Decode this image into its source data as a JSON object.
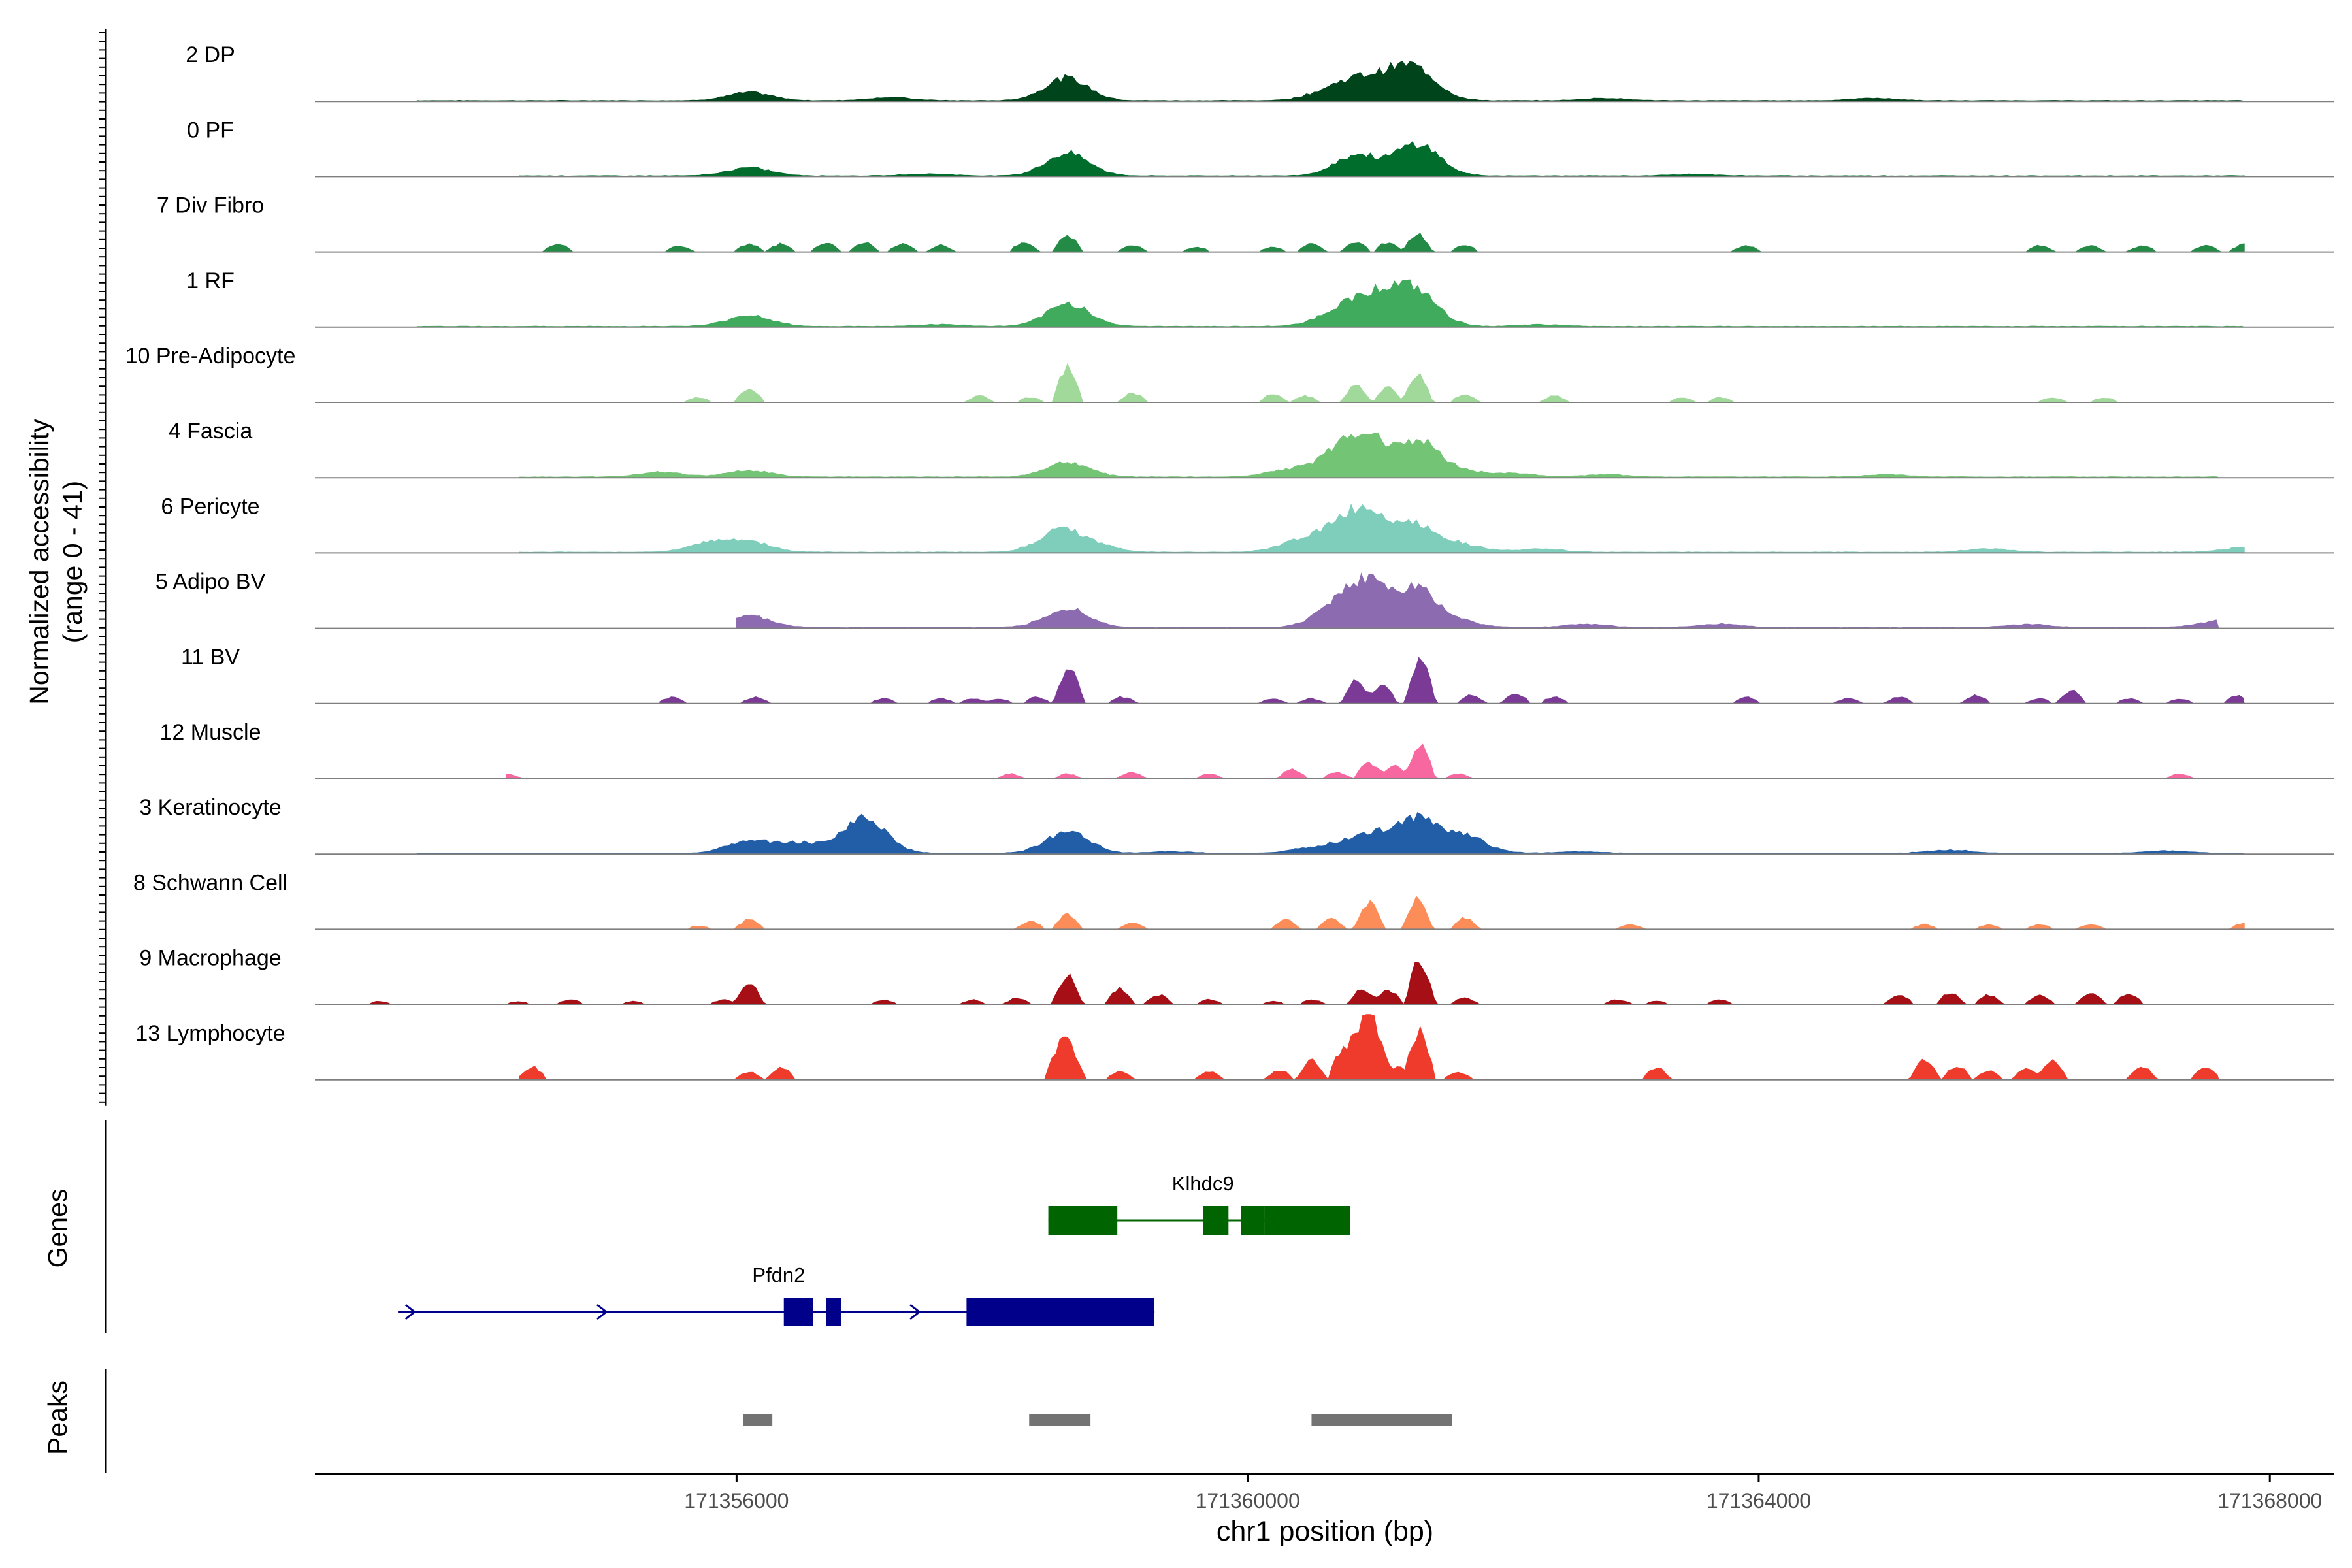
{
  "chart_data": {
    "type": "area",
    "title": "",
    "ylabel_line1": "Normalized accessibility",
    "ylabel_line2": "(range 0 - 41)",
    "xlabel": "chr1 position (bp)",
    "ylim": [
      0,
      41
    ],
    "xlim": [
      171352700,
      171368500
    ],
    "x_ticks": [
      171356000,
      171360000,
      171364000,
      171368000
    ],
    "x_tick_labels": [
      "171356000",
      "171360000",
      "171364000",
      "171368000"
    ],
    "tracks": [
      {
        "label": "2 DP",
        "color": "#00441b",
        "smooth": true,
        "coverage": [
          171353500,
          171367800
        ],
        "peaks": [
          [
            171356100,
            5
          ],
          [
            171358580,
            14
          ],
          [
            171360600,
            4
          ],
          [
            171360850,
            11
          ],
          [
            171361130,
            10
          ],
          [
            171361330,
            16
          ],
          [
            171357200,
            2
          ],
          [
            171362800,
            1.5
          ],
          [
            171364900,
            1.5
          ]
        ]
      },
      {
        "label": "0 PF",
        "color": "#006d2c",
        "smooth": true,
        "coverage": [
          171354300,
          171367800
        ],
        "peaks": [
          [
            171356100,
            5
          ],
          [
            171358590,
            14
          ],
          [
            171360850,
            13
          ],
          [
            171361330,
            20
          ],
          [
            171357500,
            1.2
          ],
          [
            171363500,
            1
          ]
        ]
      },
      {
        "label": "7 Div Fibro",
        "color": "#238b45",
        "smooth": false,
        "coverage": [
          171354300,
          171367800
        ],
        "peaks": [
          [
            171354600,
            5
          ],
          [
            171355550,
            4
          ],
          [
            171356100,
            5
          ],
          [
            171356350,
            5
          ],
          [
            171356700,
            6
          ],
          [
            171357000,
            6
          ],
          [
            171357300,
            5
          ],
          [
            171357600,
            4
          ],
          [
            171358250,
            6
          ],
          [
            171358590,
            10
          ],
          [
            171359100,
            4
          ],
          [
            171359600,
            3
          ],
          [
            171360200,
            3
          ],
          [
            171360500,
            5
          ],
          [
            171360850,
            6
          ],
          [
            171361100,
            6
          ],
          [
            171361330,
            11
          ],
          [
            171361700,
            4
          ],
          [
            171363900,
            4
          ],
          [
            171366200,
            4
          ],
          [
            171366600,
            4
          ],
          [
            171367000,
            4
          ],
          [
            171367500,
            4
          ],
          [
            171367800,
            5
          ]
        ]
      },
      {
        "label": "1 RF",
        "color": "#41ab5d",
        "smooth": true,
        "coverage": [
          171353500,
          171367800
        ],
        "peaks": [
          [
            171356100,
            7
          ],
          [
            171358600,
            14
          ],
          [
            171360700,
            8
          ],
          [
            171360950,
            13
          ],
          [
            171361130,
            9
          ],
          [
            171361330,
            18
          ],
          [
            171357600,
            1.2
          ],
          [
            171362300,
            1
          ]
        ]
      },
      {
        "label": "10 Pre-Adipocyte",
        "color": "#a1d99b",
        "smooth": false,
        "coverage": [
          171355500,
          171367300
        ],
        "peaks": [
          [
            171355700,
            3
          ],
          [
            171356100,
            9
          ],
          [
            171357900,
            4
          ],
          [
            171358300,
            3
          ],
          [
            171358590,
            22
          ],
          [
            171359100,
            6
          ],
          [
            171360200,
            5
          ],
          [
            171360450,
            4
          ],
          [
            171360850,
            11
          ],
          [
            171361100,
            9
          ],
          [
            171361330,
            17
          ],
          [
            171361700,
            5
          ],
          [
            171362400,
            4
          ],
          [
            171363400,
            3
          ],
          [
            171363700,
            3
          ],
          [
            171366300,
            3
          ],
          [
            171366700,
            3
          ]
        ]
      },
      {
        "label": "4 Fascia",
        "color": "#74c476",
        "smooth": true,
        "coverage": [
          171354300,
          171367600
        ],
        "peaks": [
          [
            171355400,
            3
          ],
          [
            171356100,
            4
          ],
          [
            171358590,
            9
          ],
          [
            171360300,
            4
          ],
          [
            171360650,
            8
          ],
          [
            171360900,
            25
          ],
          [
            171361330,
            22
          ],
          [
            171361700,
            3
          ],
          [
            171362100,
            2
          ],
          [
            171362800,
            1.5
          ],
          [
            171365000,
            1.5
          ]
        ]
      },
      {
        "label": "6 Pericyte",
        "color": "#7fcdbb",
        "smooth": true,
        "coverage": [
          171354300,
          171367800
        ],
        "peaks": [
          [
            171355800,
            6
          ],
          [
            171356100,
            6
          ],
          [
            171358530,
            13
          ],
          [
            171358800,
            4
          ],
          [
            171360400,
            6
          ],
          [
            171360700,
            12
          ],
          [
            171360950,
            22
          ],
          [
            171361330,
            16
          ],
          [
            171361700,
            4
          ],
          [
            171362300,
            2
          ],
          [
            171365800,
            2
          ],
          [
            171367800,
            3
          ]
        ]
      },
      {
        "label": "5 Adipo BV",
        "color": "#8c6bb1",
        "smooth": true,
        "coverage": [
          171356000,
          171367600
        ],
        "peaks": [
          [
            171356100,
            7
          ],
          [
            171358590,
            12
          ],
          [
            171360700,
            12
          ],
          [
            171360950,
            24
          ],
          [
            171361330,
            22
          ],
          [
            171361650,
            3
          ],
          [
            171362650,
            2
          ],
          [
            171363700,
            2
          ],
          [
            171366100,
            2
          ],
          [
            171367600,
            4
          ]
        ]
      },
      {
        "label": "11 BV",
        "color": "#7a3a96",
        "smooth": false,
        "coverage": [
          171355400,
          171367800
        ],
        "peaks": [
          [
            171355500,
            4
          ],
          [
            171356150,
            4
          ],
          [
            171357150,
            3
          ],
          [
            171357600,
            3
          ],
          [
            171357850,
            3
          ],
          [
            171358050,
            3
          ],
          [
            171358350,
            4
          ],
          [
            171358600,
            22
          ],
          [
            171359020,
            4
          ],
          [
            171360200,
            3
          ],
          [
            171360500,
            3
          ],
          [
            171360850,
            14
          ],
          [
            171361050,
            12
          ],
          [
            171361350,
            28
          ],
          [
            171361750,
            5
          ],
          [
            171362100,
            6
          ],
          [
            171362400,
            4
          ],
          [
            171363900,
            4
          ],
          [
            171364700,
            3
          ],
          [
            171365100,
            4
          ],
          [
            171365700,
            5
          ],
          [
            171366200,
            3
          ],
          [
            171366450,
            8
          ],
          [
            171366900,
            3
          ],
          [
            171367300,
            3
          ],
          [
            171367750,
            5
          ]
        ]
      },
      {
        "label": "12 Muscle",
        "color": "#f768a1",
        "smooth": false,
        "coverage": [
          171354200,
          171367400
        ],
        "peaks": [
          [
            171354200,
            3
          ],
          [
            171358150,
            3
          ],
          [
            171358590,
            3
          ],
          [
            171359090,
            4
          ],
          [
            171359700,
            3
          ],
          [
            171360350,
            6
          ],
          [
            171360700,
            4
          ],
          [
            171360950,
            10
          ],
          [
            171361150,
            8
          ],
          [
            171361350,
            20
          ],
          [
            171361650,
            3
          ],
          [
            171367300,
            3
          ]
        ]
      },
      {
        "label": "3 Keratinocyte",
        "color": "#225ea8",
        "smooth": true,
        "coverage": [
          171353500,
          171367800
        ],
        "peaks": [
          [
            171356100,
            8
          ],
          [
            171356500,
            6
          ],
          [
            171357000,
            22
          ],
          [
            171358590,
            13
          ],
          [
            171360500,
            3
          ],
          [
            171360850,
            8
          ],
          [
            171361100,
            6
          ],
          [
            171361330,
            19
          ],
          [
            171361700,
            10
          ],
          [
            171359400,
            1
          ],
          [
            171362600,
            1
          ],
          [
            171365500,
            2
          ],
          [
            171367200,
            1.5
          ]
        ]
      },
      {
        "label": "8 Schwann Cell",
        "color": "#fc8d59",
        "smooth": false,
        "coverage": [
          171355500,
          171367800
        ],
        "peaks": [
          [
            171355700,
            2
          ],
          [
            171356100,
            6
          ],
          [
            171358300,
            5
          ],
          [
            171358590,
            9
          ],
          [
            171359100,
            4
          ],
          [
            171360300,
            6
          ],
          [
            171360650,
            7
          ],
          [
            171360950,
            17
          ],
          [
            171361330,
            19
          ],
          [
            171361700,
            7
          ],
          [
            171363000,
            3
          ],
          [
            171365300,
            3
          ],
          [
            171365800,
            3
          ],
          [
            171366200,
            3
          ],
          [
            171366600,
            3
          ],
          [
            171367800,
            4
          ]
        ]
      },
      {
        "label": "9 Macrophage",
        "color": "#a50f15",
        "smooth": false,
        "coverage": [
          171353000,
          171367200
        ],
        "peaks": [
          [
            171353200,
            2
          ],
          [
            171354300,
            2
          ],
          [
            171354700,
            3
          ],
          [
            171355200,
            2
          ],
          [
            171355900,
            3
          ],
          [
            171356100,
            13
          ],
          [
            171357150,
            3
          ],
          [
            171357850,
            3
          ],
          [
            171358200,
            4
          ],
          [
            171358590,
            18
          ],
          [
            171359000,
            10
          ],
          [
            171359300,
            6
          ],
          [
            171359700,
            3
          ],
          [
            171360200,
            2
          ],
          [
            171360500,
            3
          ],
          [
            171360900,
            10
          ],
          [
            171361100,
            9
          ],
          [
            171361350,
            28
          ],
          [
            171361700,
            4
          ],
          [
            171362900,
            3
          ],
          [
            171363200,
            2
          ],
          [
            171363700,
            3
          ],
          [
            171365100,
            6
          ],
          [
            171365500,
            7
          ],
          [
            171365800,
            6
          ],
          [
            171366200,
            6
          ],
          [
            171366600,
            7
          ],
          [
            171366900,
            7
          ]
        ]
      },
      {
        "label": "13 Lymphocyte",
        "color": "#ef3b2c",
        "smooth": false,
        "coverage": [
          171354300,
          171367600
        ],
        "peaks": [
          [
            171354400,
            8
          ],
          [
            171356100,
            5
          ],
          [
            171356350,
            8
          ],
          [
            171358530,
            19
          ],
          [
            171358620,
            15
          ],
          [
            171359000,
            5
          ],
          [
            171359700,
            5
          ],
          [
            171360250,
            6
          ],
          [
            171360500,
            12
          ],
          [
            171360750,
            20
          ],
          [
            171360900,
            36
          ],
          [
            171361000,
            29
          ],
          [
            171361180,
            8
          ],
          [
            171361350,
            30
          ],
          [
            171361650,
            5
          ],
          [
            171363200,
            8
          ],
          [
            171365300,
            13
          ],
          [
            171365550,
            9
          ],
          [
            171365800,
            6
          ],
          [
            171366100,
            8
          ],
          [
            171366300,
            12
          ],
          [
            171367000,
            8
          ],
          [
            171367500,
            8
          ]
        ]
      }
    ],
    "genes_label": "Genes",
    "genes": [
      {
        "name": "Klhdc9",
        "color": "#006400",
        "start": 171358440,
        "end": 171360800,
        "strand": "",
        "exons": [
          [
            171358440,
            171358980
          ],
          [
            171359650,
            171359850
          ],
          [
            171359950,
            171360130
          ],
          [
            171360130,
            171360800
          ]
        ]
      },
      {
        "name": "Pfdn2",
        "color": "#00008b",
        "start": 171353350,
        "end": 171359200,
        "strand": "+",
        "exons": [
          [
            171356370,
            171356600
          ],
          [
            171356700,
            171356820
          ],
          [
            171357800,
            171359270
          ]
        ]
      }
    ],
    "peaks_label": "Peaks",
    "peak_regions": [
      [
        171356050,
        171356280
      ],
      [
        171358290,
        171358770
      ],
      [
        171360500,
        171361600
      ]
    ]
  }
}
